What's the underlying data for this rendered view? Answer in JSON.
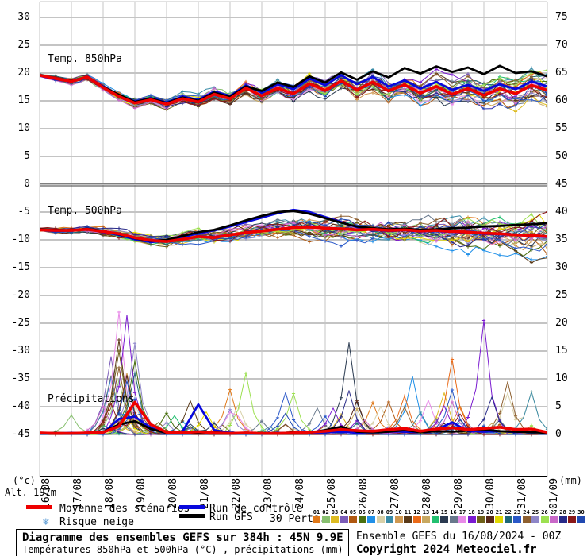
{
  "legend": {
    "mean_label": "Moyenne des scénarios",
    "control_label": "Run de contrôle",
    "gfs_label": "Run GFS",
    "perts_label": "30 Perts.",
    "snow_label": "Risque neige"
  },
  "footer": {
    "title": "Diagramme des ensembles GEFS sur 384h : 45N 9.9E",
    "subtitle": "Températures 850hPa et 500hPa (°C) , précipitations (mm)",
    "run_info": "Ensemble GEFS du 16/08/2024 - 00Z",
    "copyright": "Copyright 2024 Meteociel.fr",
    "altitude": "Alt. 197m"
  },
  "axes": {
    "left_unit": "(°c)",
    "right_unit": "(mm)",
    "left_ticks": [
      "30",
      "25",
      "20",
      "15",
      "10",
      "5",
      "0",
      "-5",
      "-10",
      "-15",
      "-20",
      "-25",
      "-30",
      "-35",
      "-40",
      "-45"
    ],
    "right_ticks": [
      "75",
      "70",
      "65",
      "60",
      "55",
      "50",
      "45",
      "40",
      "35",
      "30",
      "25",
      "20",
      "15",
      "10",
      "5",
      "0"
    ]
  },
  "chart_data": {
    "type": "line",
    "subtype": "ensemble-meteogram",
    "x_dates": [
      "16/08",
      "17/08",
      "18/08",
      "19/08",
      "20/08",
      "21/08",
      "22/08",
      "23/08",
      "24/08",
      "25/08",
      "26/08",
      "27/08",
      "28/08",
      "29/08",
      "30/08",
      "31/08",
      "01/09"
    ],
    "step_hours_of_data": 12,
    "left_axis": {
      "unit": "°C",
      "min": -45,
      "max": 30,
      "tick_step": 5
    },
    "right_axis": {
      "unit": "mm",
      "min": 0,
      "max": 75,
      "tick_step": 5
    },
    "series_styles": {
      "mean": {
        "name": "Moyenne des scénarios",
        "color": "#ee0000",
        "width": 3.6
      },
      "control": {
        "name": "Run de contrôle",
        "color": "#0808dd",
        "width": 2.8
      },
      "gfs": {
        "name": "Run GFS",
        "color": "#000000",
        "width": 2.8
      }
    },
    "panels": [
      {
        "id": "t850",
        "label": "Temp. 850hPa",
        "kind": "temp",
        "mean": [
          19.6,
          19.0,
          18.5,
          19.3,
          17.4,
          15.8,
          14.6,
          15.2,
          14.4,
          15.4,
          14.8,
          16.2,
          15.4,
          17.3,
          15.9,
          17.3,
          16.3,
          18.1,
          16.9,
          18.6,
          17.0,
          18.4,
          16.8,
          17.9,
          16.4,
          17.6,
          16.2,
          17.2,
          16.0,
          17.2,
          16.3,
          17.8,
          16.9
        ],
        "control": [
          19.5,
          18.9,
          18.4,
          19.4,
          17.6,
          16.0,
          14.9,
          15.5,
          14.7,
          15.8,
          15.2,
          16.7,
          15.9,
          17.8,
          16.5,
          18.0,
          17.1,
          19.0,
          17.8,
          19.6,
          18.0,
          19.3,
          17.6,
          18.7,
          17.2,
          18.4,
          17.0,
          17.9,
          16.8,
          18.0,
          17.1,
          18.5,
          17.6
        ],
        "gfs": [
          19.6,
          19.0,
          18.6,
          19.2,
          17.5,
          16.1,
          14.8,
          15.4,
          14.6,
          15.6,
          15.0,
          16.5,
          15.7,
          17.6,
          16.8,
          18.3,
          17.5,
          19.4,
          18.3,
          20.1,
          18.8,
          20.3,
          19.2,
          20.9,
          19.9,
          21.2,
          20.2,
          21.0,
          19.8,
          21.3,
          20.0,
          20.3,
          19.4
        ],
        "spread": {
          "base": 0.35,
          "grow": 1.6
        },
        "clamp": [
          10.9,
          21.8
        ]
      },
      {
        "id": "t500",
        "label": "Temp. 500hPa",
        "kind": "temp",
        "mean": [
          -8.2,
          -8.3,
          -8.3,
          -8.1,
          -8.5,
          -8.9,
          -9.6,
          -10.1,
          -10.3,
          -9.9,
          -9.4,
          -9.6,
          -9.1,
          -8.7,
          -8.4,
          -8.1,
          -7.8,
          -7.7,
          -7.9,
          -8.0,
          -8.2,
          -8.1,
          -8.3,
          -8.2,
          -8.4,
          -8.3,
          -8.5,
          -8.6,
          -8.8,
          -8.9,
          -9.1,
          -9.2,
          -9.4
        ],
        "control": [
          -8.2,
          -8.4,
          -8.3,
          -8.0,
          -8.6,
          -9.1,
          -9.9,
          -10.4,
          -10.1,
          -9.5,
          -8.8,
          -8.3,
          -7.6,
          -6.8,
          -6.0,
          -5.2,
          -4.6,
          -5.0,
          -5.9,
          -6.8,
          -7.7,
          -8.2,
          -8.4,
          -8.3,
          -8.5,
          -8.4,
          -8.6,
          -8.7,
          -8.9,
          -9.0,
          -9.1,
          -9.3,
          -9.5
        ],
        "gfs": [
          -8.1,
          -8.2,
          -8.3,
          -8.0,
          -8.4,
          -9.0,
          -9.7,
          -10.2,
          -10.0,
          -9.3,
          -8.6,
          -8.2,
          -7.4,
          -6.5,
          -5.7,
          -5.0,
          -4.8,
          -5.3,
          -6.1,
          -6.9,
          -7.6,
          -7.9,
          -8.1,
          -8.0,
          -8.2,
          -8.1,
          -7.9,
          -7.8,
          -7.6,
          -7.5,
          -7.3,
          -7.2,
          -7.0
        ],
        "spread": {
          "base": 0.4,
          "grow": 2.0
        },
        "clamp": [
          -15.8,
          -3.6
        ]
      },
      {
        "id": "precip",
        "label": "Précipitations",
        "kind": "precip",
        "mean": [
          0.3,
          0.2,
          0.2,
          0.3,
          0.4,
          1.5,
          5.8,
          1.8,
          0.4,
          0.3,
          0.5,
          0.3,
          0.2,
          0.3,
          0.2,
          0.2,
          0.3,
          0.4,
          0.6,
          0.9,
          0.7,
          0.6,
          0.9,
          1.1,
          0.6,
          1.0,
          1.2,
          0.9,
          1.1,
          1.3,
          0.9,
          1.0,
          0.4
        ],
        "control": [
          0.2,
          0.2,
          0.3,
          0.2,
          0.3,
          2.8,
          3.2,
          1.2,
          0.3,
          0.5,
          5.4,
          0.8,
          0.3,
          0.2,
          0.2,
          0.3,
          0.2,
          0.3,
          0.4,
          0.5,
          0.3,
          0.4,
          0.6,
          0.5,
          0.4,
          0.8,
          2.2,
          0.6,
          0.5,
          0.6,
          0.4,
          0.5,
          0.3
        ],
        "gfs": [
          0.2,
          0.3,
          0.2,
          0.3,
          0.5,
          1.8,
          2.4,
          1.0,
          0.3,
          0.2,
          0.3,
          0.4,
          0.2,
          0.3,
          0.2,
          0.2,
          0.4,
          0.3,
          0.8,
          1.4,
          0.5,
          0.4,
          0.5,
          0.8,
          0.4,
          0.6,
          0.5,
          0.7,
          0.9,
          0.6,
          0.5,
          0.4,
          0.3
        ],
        "cluster": {
          "center_day": 2.6,
          "max_mm": 22
        },
        "featured_spikes": [
          {
            "member": 17,
            "day": 2.5,
            "mm": 22.0
          },
          {
            "member": 18,
            "day": 2.75,
            "mm": 21.5
          },
          {
            "member": 11,
            "day": 2.6,
            "mm": 17.0
          },
          {
            "member": 4,
            "day": 2.25,
            "mm": 14.0
          },
          {
            "member": 19,
            "day": 2.5,
            "mm": 15.0
          },
          {
            "member": 2,
            "day": 0.9,
            "mm": 3.5
          },
          {
            "member": 26,
            "day": 6.55,
            "mm": 11.0
          },
          {
            "member": 15,
            "day": 9.8,
            "mm": 16.5
          },
          {
            "member": 7,
            "day": 11.8,
            "mm": 10.5
          },
          {
            "member": 9,
            "day": 12.0,
            "mm": 4.0
          },
          {
            "member": 23,
            "day": 13.0,
            "mm": 8.0
          },
          {
            "member": 12,
            "day": 13.05,
            "mm": 13.5
          },
          {
            "member": 18,
            "day": 14.05,
            "mm": 20.5
          },
          {
            "member": 24,
            "day": 14.8,
            "mm": 9.5
          },
          {
            "member": 8,
            "day": 14.85,
            "mm": 7.5
          }
        ],
        "clamp": [
          0,
          22.3
        ]
      }
    ],
    "pert_numbers": [
      "01",
      "02",
      "03",
      "04",
      "05",
      "06",
      "07",
      "08",
      "09",
      "10",
      "11",
      "12",
      "13",
      "14",
      "15",
      "16",
      "17",
      "18",
      "19",
      "20",
      "21",
      "22",
      "23",
      "24",
      "25",
      "26",
      "27",
      "28",
      "29",
      "30"
    ],
    "pert_colors": [
      "#e07818",
      "#88c070",
      "#ddbb22",
      "#7b5cb8",
      "#b05810",
      "#4a7010",
      "#2090e8",
      "#d8d0a8",
      "#3a8ca8",
      "#cf9850",
      "#5a3a18",
      "#ea6a18",
      "#c8a860",
      "#22c070",
      "#2a3a50",
      "#68788c",
      "#e88ae8",
      "#7a1ad0",
      "#6e6018",
      "#582818",
      "#e0d800",
      "#1e6878",
      "#2a58c8",
      "#8e6030",
      "#8e86c8",
      "#9ce050",
      "#c868c8",
      "#282a88",
      "#8a1818",
      "#2048b0"
    ],
    "grid_color": "#c4c4c4",
    "zero_line_color": "#3a3a3a"
  }
}
